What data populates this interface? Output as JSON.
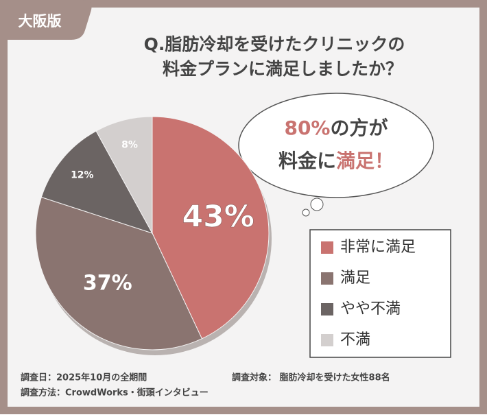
{
  "chart_data": {
    "type": "pie",
    "badge": "大阪版",
    "title": [
      "Q.脂肪冷却を受けたクリニックの",
      "料金プランに満足しましたか？"
    ],
    "callout": [
      "80%",
      "の方が",
      "料金に",
      "満足",
      "！"
    ],
    "categories": [
      "非常に満足",
      "満足",
      "やや不満",
      "不満"
    ],
    "values": [
      43,
      37,
      12,
      8
    ],
    "value_labels": [
      "43%",
      "37%",
      "12%",
      "8%"
    ],
    "colors": [
      "#c97370",
      "#8a7470",
      "#6b6463",
      "#d3cfce"
    ],
    "notes": [
      "調査日：2025年10月の全期間",
      "調査方法：CrowdWorks・街頭インタビュー",
      "調査対象： 脂肪冷却を受けた女性88名"
    ]
  }
}
